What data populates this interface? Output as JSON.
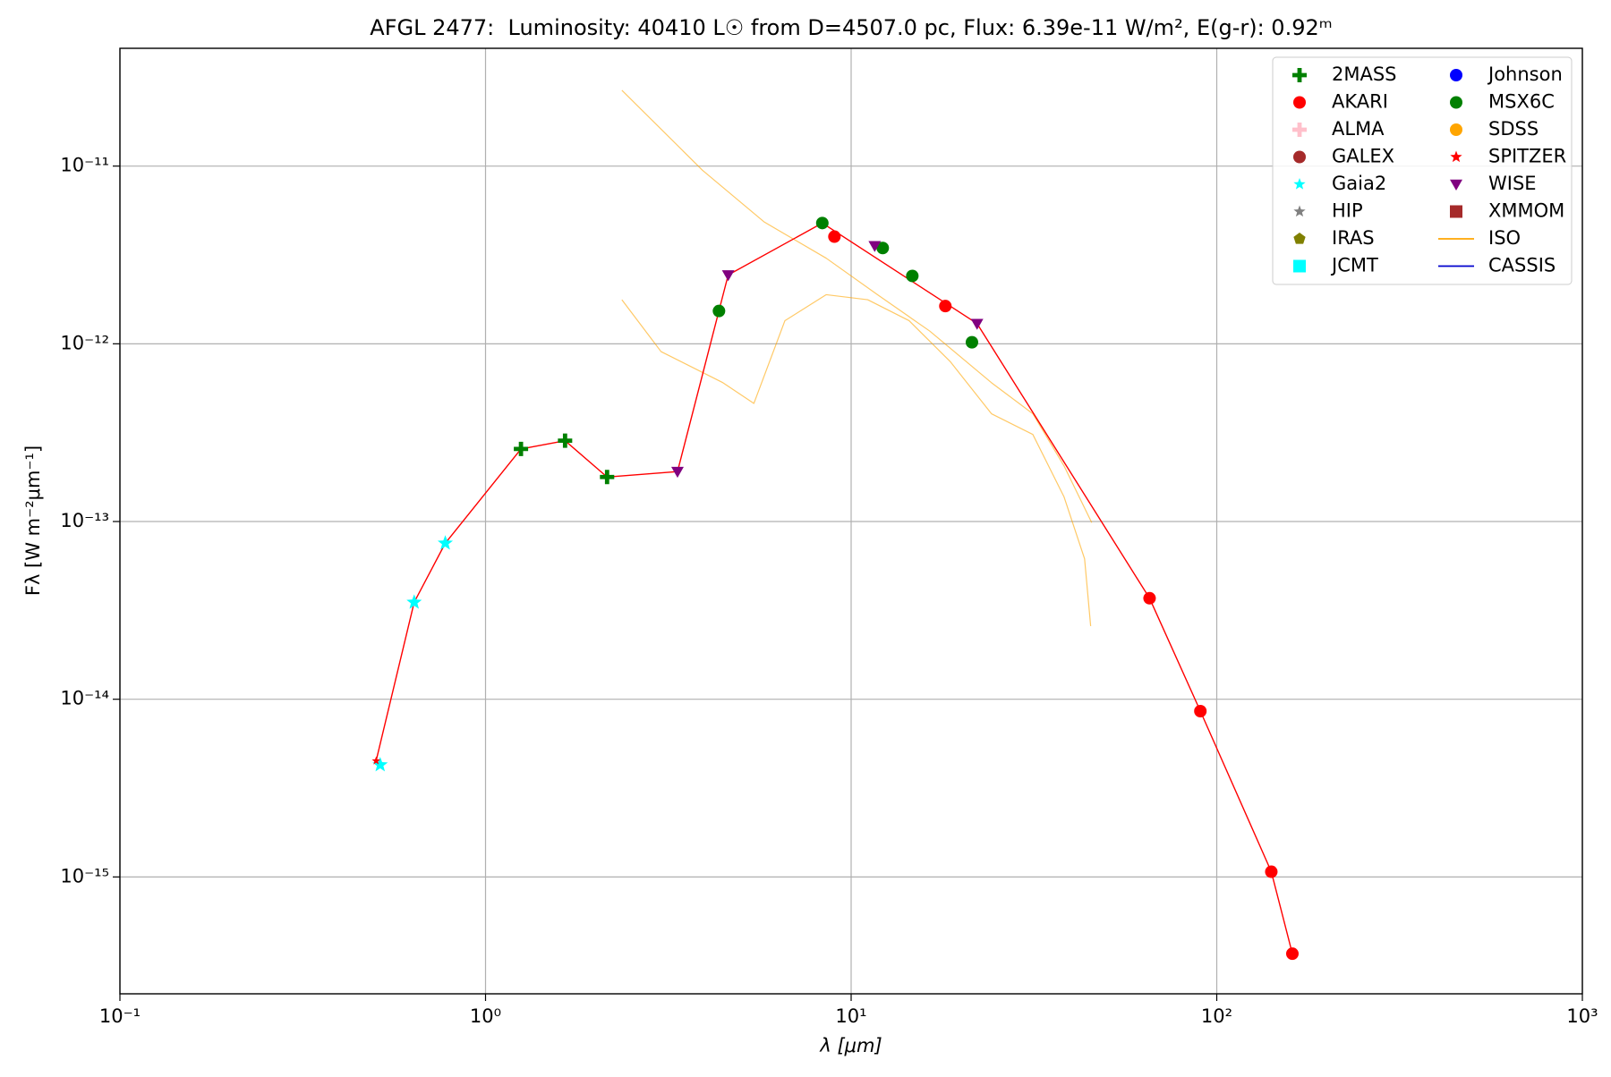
{
  "chart_data": {
    "type": "scatter",
    "title": "AFGL 2477:  Luminosity: 40410 L☉ from D=4507.0 pc, Flux: 6.39e-11 W/m², E(g-r): 0.92ᵐ",
    "xlabel": "λ [μm]",
    "ylabel": "Fλ [W m⁻²μm⁻¹]",
    "xscale": "log",
    "yscale": "log",
    "grid": true,
    "legend": "upper right",
    "legend_columns": 2,
    "xlim": [
      0.1,
      1000
    ],
    "ylim": [
      2.2e-16,
      4.6e-11
    ],
    "xticks": [
      {
        "value": 0.1,
        "label": "10⁻¹"
      },
      {
        "value": 1,
        "label": "10⁰"
      },
      {
        "value": 10,
        "label": "10¹"
      },
      {
        "value": 100,
        "label": "10²"
      },
      {
        "value": 1000,
        "label": "10³"
      }
    ],
    "yticks": [
      {
        "value": 1e-15,
        "label": "10⁻¹⁵"
      },
      {
        "value": 1e-14,
        "label": "10⁻¹⁴"
      },
      {
        "value": 1e-13,
        "label": "10⁻¹³"
      },
      {
        "value": 1e-12,
        "label": "10⁻¹²"
      },
      {
        "value": 1e-11,
        "label": "10⁻¹¹"
      }
    ],
    "model": {
      "color": "#ff0000",
      "x": [
        0.502,
        0.638,
        0.776,
        1.25,
        1.65,
        2.15,
        3.35,
        4.61,
        8.34,
        22.1,
        65.5,
        90.2,
        141,
        161
      ],
      "values": [
        4.5e-15,
        3.51e-14,
        7.55e-14,
        2.56e-13,
        2.85e-13,
        1.78e-13,
        1.91e-13,
        2.44e-12,
        4.78e-12,
        1.3e-12,
        3.7e-14,
        8.57e-15,
        1.07e-15,
        3.7e-16
      ]
    },
    "series": [
      {
        "name": "2MASS",
        "color": "#008000",
        "marker": "plus",
        "x": [
          1.25,
          1.65,
          2.15
        ],
        "values": [
          2.56e-13,
          2.85e-13,
          1.78e-13
        ]
      },
      {
        "name": "AKARI",
        "color": "#ff0000",
        "marker": "circle",
        "x": [
          9.0,
          18.1,
          65.5,
          90.2,
          141,
          161
        ],
        "values": [
          4.01e-12,
          1.63e-12,
          3.7e-14,
          8.57e-15,
          1.07e-15,
          3.7e-16
        ]
      },
      {
        "name": "ALMA",
        "color": "#ffc0cb",
        "marker": "plus",
        "x": [],
        "values": []
      },
      {
        "name": "GALEX",
        "color": "#a52a2a",
        "marker": "circle",
        "x": [],
        "values": []
      },
      {
        "name": "Gaia2",
        "color": "#00ffff",
        "marker": "star",
        "x": [
          0.515,
          0.638,
          0.776
        ],
        "values": [
          4.27e-15,
          3.51e-14,
          7.55e-14
        ]
      },
      {
        "name": "HIP",
        "color": "#808080",
        "marker": "star",
        "x": [],
        "values": []
      },
      {
        "name": "IRAS",
        "color": "#808000",
        "marker": "pentagon",
        "x": [],
        "values": []
      },
      {
        "name": "JCMT",
        "color": "#00ffff",
        "marker": "square",
        "x": [],
        "values": []
      },
      {
        "name": "Johnson",
        "color": "#0000ff",
        "marker": "circle",
        "x": [],
        "values": []
      },
      {
        "name": "MSX6C",
        "color": "#008000",
        "marker": "circle",
        "x": [
          4.35,
          8.34,
          12.2,
          14.7,
          21.4
        ],
        "values": [
          1.53e-12,
          4.78e-12,
          3.46e-12,
          2.41e-12,
          1.02e-12
        ]
      },
      {
        "name": "SDSS",
        "color": "#ffa500",
        "marker": "circle",
        "x": [],
        "values": []
      },
      {
        "name": "SPITZER",
        "color": "#ff0000",
        "marker": "star",
        "x": [
          0.502
        ],
        "values": [
          4.5e-15
        ]
      },
      {
        "name": "WISE",
        "color": "#800080",
        "marker": "tridown",
        "x": [
          3.35,
          4.61,
          11.6,
          22.1
        ],
        "values": [
          1.91e-13,
          2.44e-12,
          3.56e-12,
          1.3e-12
        ]
      },
      {
        "name": "XMMOM",
        "color": "#a52a2a",
        "marker": "square",
        "x": [],
        "values": []
      },
      {
        "name": "ISO",
        "color": "#ffa500",
        "marker": "line",
        "x": [
          2.36,
          3.92,
          5.79,
          8.55,
          11.8,
          16.4,
          24.2,
          31.4,
          38.2,
          45.5,
          null,
          2.36,
          3.02,
          4.46,
          5.42,
          6.59,
          8.55,
          11.1,
          14.4,
          18.7,
          24.2,
          31.4,
          38.2,
          43.5,
          45.2
        ],
        "values": [
          2.67e-11,
          9.48e-12,
          4.84e-12,
          3.03e-12,
          1.89e-12,
          1.18e-12,
          6.04e-13,
          4.04e-13,
          2.06e-13,
          9.86e-14,
          null,
          1.77e-12,
          9.04e-13,
          6.04e-13,
          4.62e-13,
          1.35e-12,
          1.89e-12,
          1.77e-12,
          1.35e-12,
          7.91e-13,
          4.04e-13,
          3.09e-13,
          1.38e-13,
          6.17e-14,
          2.58e-14
        ]
      },
      {
        "name": "CASSIS",
        "color": "#0000cd",
        "marker": "line",
        "x": [],
        "values": []
      }
    ]
  }
}
